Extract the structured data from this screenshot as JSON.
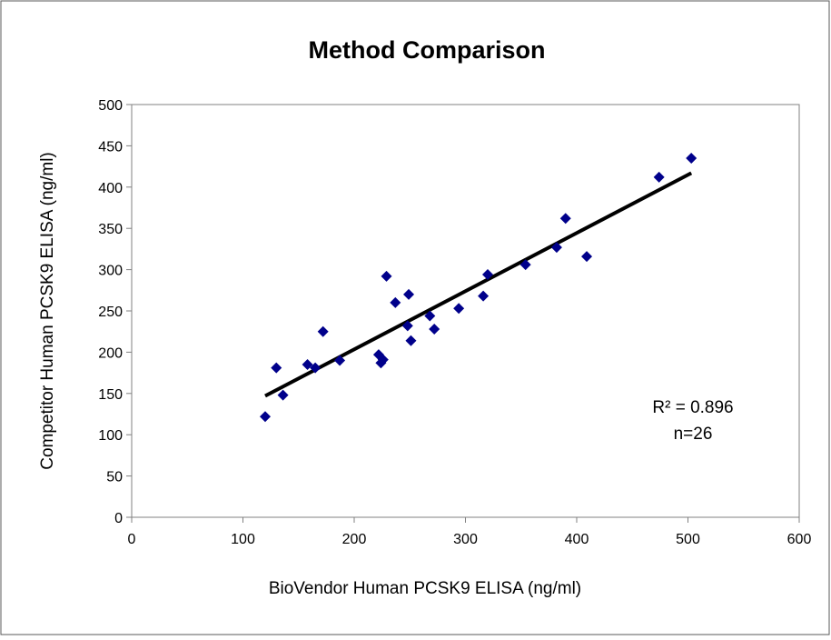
{
  "chart_data": {
    "type": "scatter",
    "title": "Method Comparison",
    "xlabel": "BioVendor Human PCSK9  ELISA  (ng/ml)",
    "ylabel": "Competitor Human  PCSK9  ELISA  (ng/ml)",
    "xlim": [
      0,
      600
    ],
    "ylim": [
      0,
      500
    ],
    "xticks": [
      0,
      100,
      200,
      300,
      400,
      500,
      600
    ],
    "yticks": [
      0,
      50,
      100,
      150,
      200,
      250,
      300,
      350,
      400,
      450,
      500
    ],
    "grid": false,
    "marker": "diamond",
    "marker_color": "#00008B",
    "series": [
      {
        "points": [
          [
            120,
            122
          ],
          [
            130,
            181
          ],
          [
            136,
            148
          ],
          [
            158,
            185
          ],
          [
            165,
            181
          ],
          [
            172,
            225
          ],
          [
            187,
            190
          ],
          [
            222,
            197
          ],
          [
            224,
            187
          ],
          [
            226,
            191
          ],
          [
            229,
            292
          ],
          [
            237,
            260
          ],
          [
            248,
            232
          ],
          [
            249,
            270
          ],
          [
            251,
            214
          ],
          [
            268,
            244
          ],
          [
            272,
            228
          ],
          [
            294,
            253
          ],
          [
            316,
            268
          ],
          [
            320,
            294
          ],
          [
            354,
            306
          ],
          [
            382,
            327
          ],
          [
            390,
            362
          ],
          [
            409,
            316
          ],
          [
            474,
            412
          ],
          [
            503,
            435
          ]
        ]
      }
    ],
    "trendline": {
      "x": [
        120,
        503
      ],
      "y": [
        147,
        417
      ],
      "color": "#000000"
    },
    "annotations": {
      "r_squared": "R² = 0.896",
      "n": "n=26"
    }
  }
}
